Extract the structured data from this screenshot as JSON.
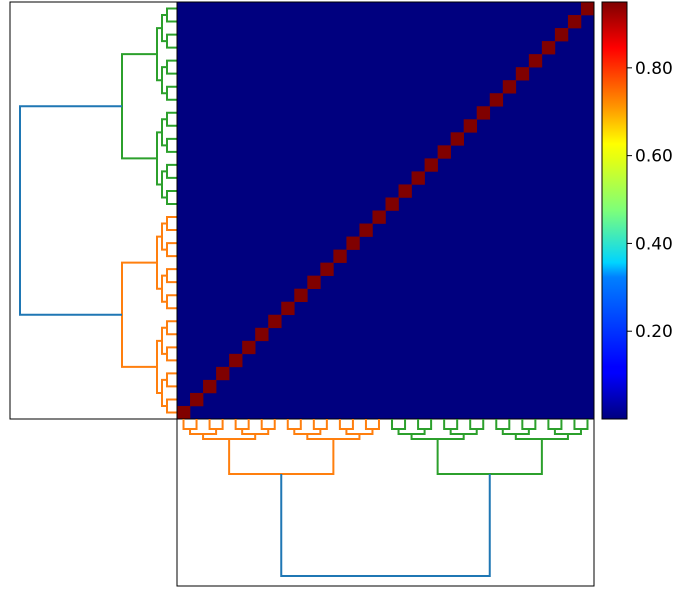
{
  "chart_data": [
    {
      "type": "heatmap",
      "title": "",
      "description_of_values": "32x32 matrix, diagonal cells at maximum, all off-diagonal cells at minimum",
      "size": 32,
      "diagonal_value": 0.95,
      "off_diagonal_value": 0.0,
      "colormap": "jet",
      "colorbar": {
        "vmin": 0.0,
        "vmax": 0.95,
        "ticks": [
          0.2,
          0.4,
          0.6,
          0.8
        ],
        "tick_labels": [
          "0.20",
          "0.40",
          "0.60",
          "0.80"
        ]
      }
    },
    {
      "type": "dendrogram",
      "orientation": "left",
      "leaves": 32,
      "clusters": [
        {
          "color": "#ff7f0e",
          "leaves": 16
        },
        {
          "color": "#2ca02c",
          "leaves": 16
        }
      ],
      "root_color": "#1f77b4"
    },
    {
      "type": "dendrogram",
      "orientation": "bottom",
      "leaves": 32,
      "clusters": [
        {
          "color": "#ff7f0e",
          "leaves": 16
        },
        {
          "color": "#2ca02c",
          "leaves": 16
        }
      ],
      "root_color": "#1f77b4"
    }
  ],
  "colors": {
    "orange": "#ff7f0e",
    "green": "#2ca02c",
    "blue": "#1f77b4",
    "heat_low": "#00007f",
    "heat_high": "#800000"
  }
}
